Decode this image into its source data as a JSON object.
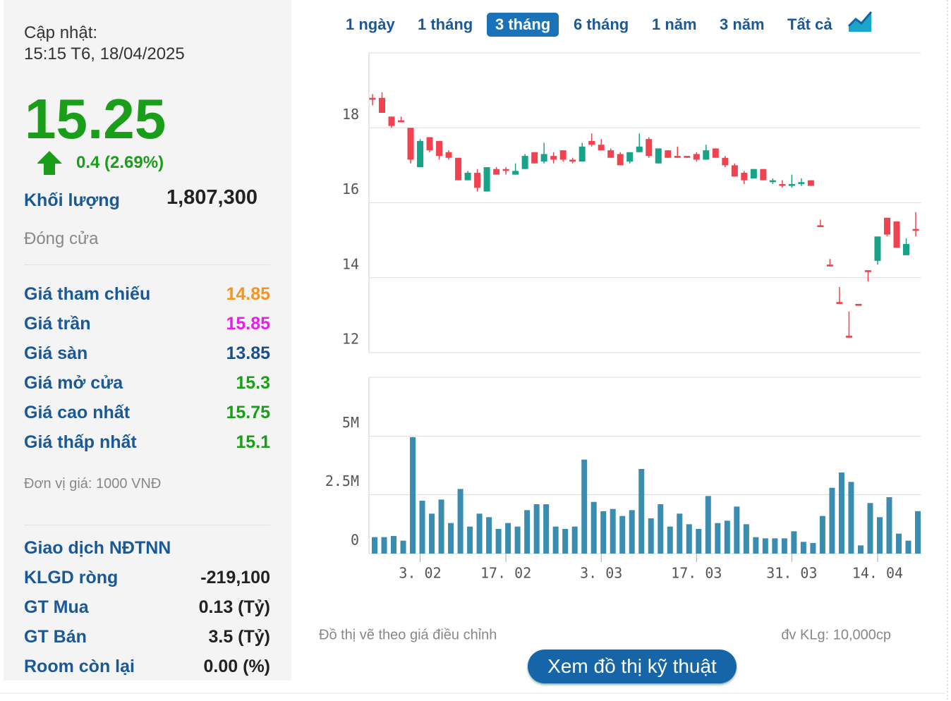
{
  "update": {
    "label": "Cập nhật:",
    "time": "15:15 T6, 18/04/2025"
  },
  "price": "15.25",
  "change": "0.4 (2.69%)",
  "volume": {
    "label": "Khối lượng",
    "value": "1,807,300"
  },
  "status": "Đóng cửa",
  "stats": [
    {
      "label": "Giá tham chiếu",
      "value": "14.85",
      "color": "#f7941d"
    },
    {
      "label": "Giá trần",
      "value": "15.85",
      "color": "#e61ee6"
    },
    {
      "label": "Giá sàn",
      "value": "13.85",
      "color": "#1b4f8a"
    },
    {
      "label": "Giá mở cửa",
      "value": "15.3",
      "color": "#1a9e1a"
    },
    {
      "label": "Giá cao nhất",
      "value": "15.75",
      "color": "#1a9e1a"
    },
    {
      "label": "Giá thấp nhất",
      "value": "15.1",
      "color": "#1a9e1a"
    }
  ],
  "unit_note": "Đơn vị giá: 1000 VNĐ",
  "foreign": {
    "title": "Giao dịch NĐTNN",
    "rows": [
      {
        "label": "KLGD ròng",
        "value": "-219,100"
      },
      {
        "label": "GT Mua",
        "value": "0.13 (Tỷ)"
      },
      {
        "label": "GT Bán",
        "value": "3.5 (Tỷ)"
      },
      {
        "label": "Room còn lại",
        "value": "0.00 (%)"
      }
    ]
  },
  "tabs": [
    "1 ngày",
    "1 tháng",
    "3 tháng",
    "6 tháng",
    "1 năm",
    "3 năm",
    "Tất cả"
  ],
  "active_tab": 2,
  "chart_data": {
    "type": "candlestick",
    "categories": [
      null,
      null,
      null,
      null,
      null,
      "3. 02",
      null,
      null,
      null,
      null,
      null,
      null,
      null,
      null,
      "17. 02",
      null,
      null,
      null,
      null,
      null,
      null,
      null,
      null,
      null,
      "3. 03",
      null,
      null,
      null,
      null,
      null,
      null,
      null,
      null,
      null,
      "17. 03",
      null,
      null,
      null,
      null,
      null,
      null,
      null,
      null,
      null,
      "31. 03",
      null,
      null,
      null,
      null,
      null,
      null,
      null,
      null,
      "14. 04",
      null,
      null,
      null,
      null
    ],
    "open": [
      18.8,
      18.8,
      18.3,
      18.2,
      18.0,
      16.95,
      17.75,
      17.65,
      17.35,
      17.2,
      16.6,
      16.8,
      16.3,
      16.9,
      16.9,
      16.75,
      16.9,
      17.35,
      17.1,
      17.25,
      17.4,
      17.15,
      17.1,
      17.65,
      17.55,
      17.4,
      17.3,
      17.1,
      17.35,
      17.7,
      17.05,
      17.4,
      17.25,
      17.25,
      17.3,
      17.15,
      17.45,
      17.2,
      17.0,
      16.8,
      16.65,
      16.9,
      16.55,
      16.5,
      16.45,
      16.5,
      16.6,
      15.4,
      14.35,
      13.35,
      12.45,
      13.3,
      14.2,
      14.45,
      15.6,
      15.5,
      14.6,
      15.3
    ],
    "high": [
      18.9,
      18.95,
      18.3,
      18.3,
      18.0,
      17.7,
      17.75,
      17.65,
      17.4,
      17.2,
      16.85,
      16.9,
      16.95,
      16.95,
      16.95,
      17.05,
      17.3,
      17.35,
      17.6,
      17.35,
      17.4,
      17.2,
      17.6,
      17.85,
      17.7,
      17.45,
      17.35,
      17.35,
      17.85,
      17.75,
      17.45,
      17.4,
      17.5,
      17.25,
      17.35,
      17.55,
      17.45,
      17.25,
      17.05,
      16.85,
      16.9,
      16.9,
      16.65,
      16.6,
      16.75,
      16.65,
      16.6,
      15.55,
      14.5,
      13.75,
      13.1,
      13.3,
      14.2,
      15.1,
      15.6,
      15.5,
      15.05,
      15.75
    ],
    "low": [
      18.6,
      18.4,
      18.0,
      18.15,
      17.05,
      16.95,
      17.35,
      17.15,
      17.15,
      16.6,
      16.6,
      16.3,
      16.3,
      16.75,
      16.75,
      16.75,
      16.9,
      17.05,
      17.05,
      17.05,
      17.1,
      17.05,
      17.1,
      17.5,
      17.4,
      17.2,
      17.0,
      17.05,
      17.35,
      17.2,
      17.05,
      17.2,
      17.2,
      17.2,
      17.1,
      17.15,
      17.2,
      16.95,
      16.7,
      16.5,
      16.65,
      16.6,
      16.5,
      16.4,
      16.4,
      16.45,
      16.45,
      15.35,
      14.3,
      13.3,
      12.4,
      13.25,
      13.9,
      14.35,
      15.1,
      14.8,
      14.6,
      15.1
    ],
    "close": [
      18.75,
      18.4,
      18.05,
      18.15,
      17.15,
      17.65,
      17.4,
      17.25,
      17.2,
      16.6,
      16.8,
      16.4,
      16.95,
      16.75,
      16.85,
      16.85,
      17.25,
      17.05,
      17.3,
      17.15,
      17.15,
      17.1,
      17.5,
      17.55,
      17.4,
      17.2,
      17.0,
      17.35,
      17.5,
      17.25,
      17.45,
      17.2,
      17.2,
      17.2,
      17.15,
      17.4,
      17.2,
      17.0,
      16.7,
      16.6,
      16.9,
      16.6,
      16.6,
      16.45,
      16.5,
      16.55,
      16.45,
      15.35,
      14.3,
      13.3,
      12.4,
      13.25,
      14.15,
      15.1,
      15.15,
      14.8,
      14.9,
      15.25
    ],
    "up_color": "#16a388",
    "down_color": "#f0434f",
    "ylim": [
      12,
      20
    ],
    "yticks": [
      12,
      14,
      16,
      18
    ],
    "grid": true,
    "volume": {
      "color": "#3a8db0",
      "values": [
        700000,
        700000,
        750000,
        550000,
        4950000,
        2250000,
        1700000,
        2300000,
        1300000,
        2750000,
        1150000,
        1700000,
        1550000,
        1050000,
        1300000,
        1150000,
        1850000,
        2100000,
        2100000,
        1150000,
        1050000,
        1150000,
        4000000,
        2200000,
        1800000,
        1900000,
        1600000,
        1850000,
        3600000,
        1500000,
        2100000,
        1150000,
        1700000,
        1250000,
        1050000,
        2450000,
        1300000,
        1400000,
        2000000,
        1250000,
        700000,
        650000,
        650000,
        650000,
        950000,
        500000,
        450000,
        1600000,
        2800000,
        3450000,
        3050000,
        350000,
        2150000,
        1550000,
        2400000,
        850000,
        550000,
        1807300
      ],
      "ylim": [
        0,
        7500000
      ],
      "yticks": [
        0,
        {
          "value": 2500000,
          "label": "2.5M"
        },
        {
          "value": 5000000,
          "label": "5M"
        }
      ]
    }
  },
  "note_left": "Đồ thị vẽ theo giá điều chỉnh",
  "note_right": "đv KLg: 10,000cp",
  "button": "Xem đồ thị kỹ thuật"
}
